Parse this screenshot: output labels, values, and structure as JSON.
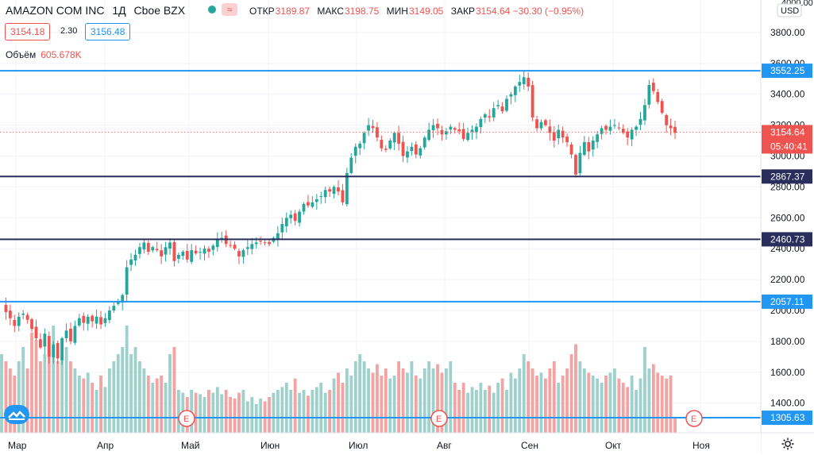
{
  "header": {
    "symbol": "AMAZON COM INC",
    "interval": "1Д",
    "exchange": "Cboe BZX",
    "indicator_badge": "≈",
    "ohlc": [
      {
        "label": "ОТКР",
        "value": "3189.87"
      },
      {
        "label": "МАКС",
        "value": "3198.75"
      },
      {
        "label": "МИН",
        "value": "3149.05"
      },
      {
        "label": "ЗАКР",
        "value": "3154.64 −30.30 (−0.95%)"
      }
    ],
    "bid": "3154.18",
    "spread": "2.30",
    "ask": "3156.48",
    "volume_label": "Объём",
    "volume_value": "605.678K"
  },
  "currency": "USD",
  "price_axis": {
    "ticks": [
      3800,
      3600,
      3400,
      3200,
      3000,
      2800,
      2600,
      2400,
      2200,
      2000,
      1800,
      1600,
      1400
    ],
    "top_label": "4000.00"
  },
  "time_axis": [
    "Мар",
    "Апр",
    "Май",
    "Июн",
    "Июл",
    "Авг",
    "Сен",
    "Окт",
    "Ноя"
  ],
  "earnings_marker": "E",
  "horizontal_lines": [
    {
      "value": "3552.25",
      "color": "#2196f3"
    },
    {
      "value": "2867.37",
      "color": "#2a2e5c"
    },
    {
      "value": "2460.73",
      "color": "#2a2e5c"
    },
    {
      "value": "2057.11",
      "color": "#2196f3"
    },
    {
      "value": "1305.63",
      "color": "#2196f3"
    }
  ],
  "last_price": {
    "value": "3154.64",
    "countdown": "05:40:41",
    "color": "#ef5350"
  },
  "colors": {
    "up": "#26a69a",
    "down": "#ef5350",
    "vol_up": "#9ed1cc",
    "vol_down": "#f2a3a2"
  },
  "chart_data": {
    "type": "candlestick",
    "title": "AMAZON COM INC · 1Д · Cboe BZX",
    "ylim": [
      1240,
      4000
    ],
    "x_months": [
      "Мар",
      "Апр",
      "Май",
      "Июн",
      "Июл",
      "Авг",
      "Сен",
      "Окт",
      "Ноя"
    ],
    "close_path": [
      2040,
      1990,
      1950,
      1900,
      1960,
      1980,
      1940,
      1880,
      1820,
      1760,
      1850,
      1700,
      1780,
      1690,
      1820,
      1870,
      1800,
      1900,
      1950,
      1920,
      1960,
      1930,
      1960,
      1910,
      1950,
      2000,
      2030,
      2060,
      2100,
      2280,
      2330,
      2360,
      2410,
      2440,
      2380,
      2410,
      2390,
      2350,
      2410,
      2440,
      2320,
      2360,
      2380,
      2330,
      2390,
      2370,
      2380,
      2400,
      2380,
      2420,
      2460,
      2470,
      2430,
      2420,
      2400,
      2350,
      2390,
      2410,
      2430,
      2440,
      2450,
      2440,
      2430,
      2470,
      2500,
      2560,
      2600,
      2620,
      2580,
      2640,
      2690,
      2680,
      2700,
      2720,
      2740,
      2780,
      2770,
      2800,
      2770,
      2700,
      2890,
      2990,
      3060,
      3080,
      3150,
      3200,
      3180,
      3120,
      3050,
      3040,
      3100,
      3150,
      3080,
      3000,
      3030,
      3060,
      3010,
      3050,
      3120,
      3170,
      3200,
      3180,
      3140,
      3160,
      3190,
      3170,
      3160,
      3110,
      3150,
      3170,
      3190,
      3240,
      3270,
      3250,
      3310,
      3330,
      3290,
      3370,
      3400,
      3450,
      3480,
      3510,
      3450,
      3250,
      3180,
      3220,
      3200,
      3150,
      3100,
      3170,
      3120,
      3090,
      3010,
      2880,
      3020,
      3090,
      3030,
      3100,
      3140,
      3180,
      3170,
      3190,
      3200,
      3180,
      3150,
      3120,
      3170,
      3190,
      3240,
      3330,
      3460,
      3420,
      3350,
      3280,
      3200,
      3180,
      3150
    ],
    "volume_relative": [
      0.55,
      0.5,
      0.45,
      0.4,
      0.5,
      0.6,
      0.45,
      0.7,
      0.65,
      0.5,
      0.55,
      0.6,
      0.75,
      0.5,
      0.55,
      0.6,
      0.5,
      0.45,
      0.4,
      0.38,
      0.42,
      0.35,
      0.3,
      0.4,
      0.32,
      0.45,
      0.5,
      0.55,
      0.6,
      0.75,
      0.55,
      0.6,
      0.5,
      0.45,
      0.4,
      0.35,
      0.38,
      0.4,
      0.35,
      0.55,
      0.6,
      0.3,
      0.28,
      0.25,
      0.3,
      0.28,
      0.27,
      0.25,
      0.3,
      0.28,
      0.32,
      0.27,
      0.3,
      0.25,
      0.24,
      0.28,
      0.3,
      0.22,
      0.25,
      0.2,
      0.24,
      0.22,
      0.25,
      0.28,
      0.3,
      0.32,
      0.35,
      0.3,
      0.38,
      0.28,
      0.3,
      0.26,
      0.3,
      0.32,
      0.35,
      0.28,
      0.3,
      0.38,
      0.42,
      0.35,
      0.45,
      0.4,
      0.5,
      0.55,
      0.5,
      0.45,
      0.42,
      0.48,
      0.4,
      0.45,
      0.38,
      0.4,
      0.5,
      0.45,
      0.42,
      0.5,
      0.4,
      0.38,
      0.45,
      0.5,
      0.45,
      0.48,
      0.42,
      0.45,
      0.5,
      0.35,
      0.3,
      0.35,
      0.28,
      0.32,
      0.3,
      0.35,
      0.3,
      0.33,
      0.28,
      0.35,
      0.38,
      0.3,
      0.42,
      0.38,
      0.45,
      0.55,
      0.5,
      0.45,
      0.4,
      0.42,
      0.38,
      0.45,
      0.5,
      0.35,
      0.4,
      0.45,
      0.55,
      0.62,
      0.5,
      0.45,
      0.42,
      0.4,
      0.38,
      0.35,
      0.4,
      0.42,
      0.45,
      0.38,
      0.35,
      0.32,
      0.4,
      0.3,
      0.38,
      0.6,
      0.45,
      0.48,
      0.42,
      0.4,
      0.38,
      0.4,
      0.1
    ]
  }
}
